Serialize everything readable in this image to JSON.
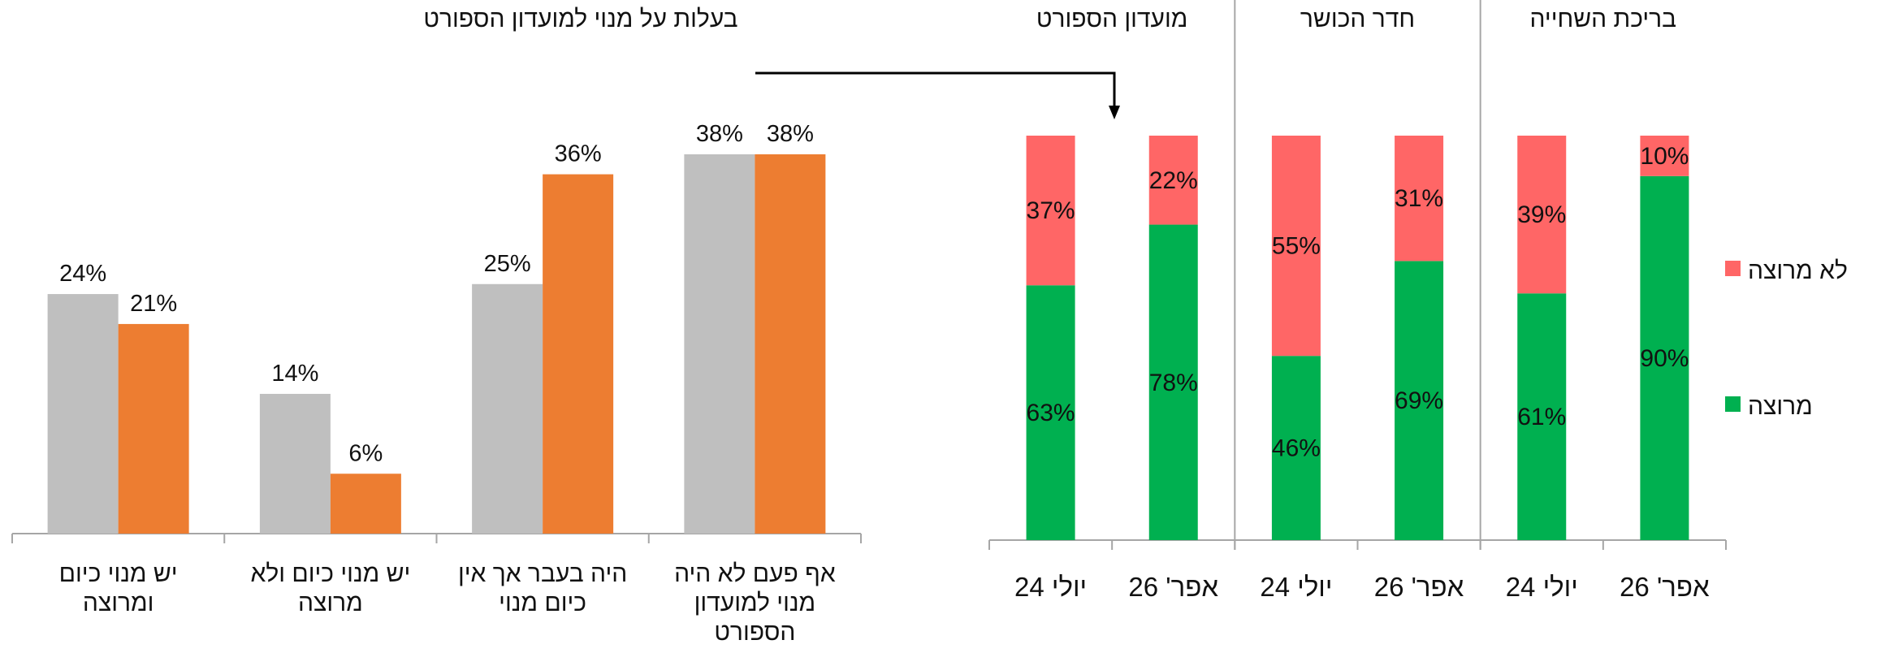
{
  "colors": {
    "gray": "#BFBFBF",
    "orange": "#ED7D31",
    "green": "#00B050",
    "red": "#FF6666",
    "axis": "#A6A6A6",
    "text": "#111111"
  },
  "chart_data": [
    {
      "type": "bar",
      "title": "בעלות על מנוי למועדון הספורט",
      "categories": [
        "אף פעם לא היה מנוי למועדון הספורט",
        "היה בעבר אך אין כיום מנוי",
        "יש מנוי כיום ולא מרוצה",
        "יש מנוי כיום ומרוצה"
      ],
      "category_lines": [
        [
          "אף פעם לא היה",
          "מנוי למועדון",
          "הספורט"
        ],
        [
          "היה בעבר אך אין",
          "כיום מנוי"
        ],
        [
          "יש מנוי כיום ולא",
          "מרוצה"
        ],
        [
          "יש מנוי כיום",
          "ומרוצה"
        ]
      ],
      "series": [
        {
          "color_key": "gray",
          "values": [
            38,
            25,
            14,
            24
          ],
          "labels": [
            "38%",
            "25%",
            "14%",
            "24%"
          ]
        },
        {
          "color_key": "orange",
          "values": [
            38,
            36,
            6,
            21
          ],
          "labels": [
            "38%",
            "36%",
            "6%",
            "21%"
          ]
        }
      ],
      "ylim": [
        0,
        45
      ],
      "grid": false,
      "legend": "none"
    },
    {
      "type": "bar",
      "stacked": true,
      "groups": [
        {
          "name": "בריכת השחייה",
          "periods": [
            "אפר' 26",
            "יולי 24"
          ]
        },
        {
          "name": "חדר הכושר",
          "periods": [
            "אפר' 26",
            "יולי 24"
          ]
        },
        {
          "name": "מועדון הספורט",
          "periods": [
            "אפר' 26",
            "יולי 24"
          ]
        }
      ],
      "period_labels": [
        "אפר' 26",
        "יולי 24",
        "אפר' 26",
        "יולי 24",
        "אפר' 26",
        "יולי 24"
      ],
      "series": [
        {
          "name": "מרוצה",
          "color_key": "green",
          "values": [
            90,
            61,
            69,
            46,
            78,
            63
          ],
          "labels": [
            "90%",
            "61%",
            "69%",
            "46%",
            "78%",
            "63%"
          ]
        },
        {
          "name": "לא מרוצה",
          "color_key": "red",
          "values": [
            10,
            39,
            31,
            55,
            22,
            37
          ],
          "labels": [
            "10%",
            "39%",
            "31%",
            "55%",
            "22%",
            "37%"
          ]
        }
      ],
      "ylim": [
        0,
        100
      ],
      "grid": false,
      "legend": "right"
    }
  ]
}
